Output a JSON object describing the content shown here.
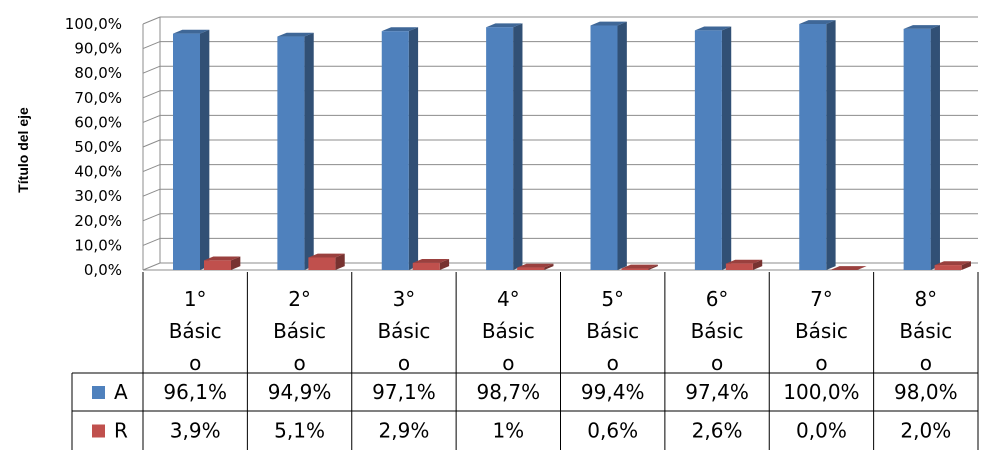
{
  "chart_data": {
    "type": "bar",
    "ylabel": "Título del eje",
    "ylim": [
      0,
      100
    ],
    "yticks": [
      "0,0%",
      "10,0%",
      "20,0%",
      "30,0%",
      "40,0%",
      "50,0%",
      "60,0%",
      "70,0%",
      "80,0%",
      "90,0%",
      "100,0%"
    ],
    "categories": [
      [
        "1°",
        "Básic",
        "o"
      ],
      [
        "2°",
        "Básic",
        "o"
      ],
      [
        "3°",
        "Básic",
        "o"
      ],
      [
        "4°",
        "Básic",
        "o"
      ],
      [
        "5°",
        "Básic",
        "o"
      ],
      [
        "6°",
        "Básic",
        "o"
      ],
      [
        "7°",
        "Básic",
        "o"
      ],
      [
        "8°",
        "Básic",
        "o"
      ]
    ],
    "series": [
      {
        "name": "A",
        "color": "#4f81bd",
        "values": [
          96.1,
          94.9,
          97.1,
          98.7,
          99.4,
          97.4,
          100.0,
          98.0
        ],
        "labels": [
          "96,1%",
          "94,9%",
          "97,1%",
          "98,7%",
          "99,4%",
          "97,4%",
          "100,0%",
          "98,0%"
        ]
      },
      {
        "name": "R",
        "color": "#c0504d",
        "values": [
          3.9,
          5.1,
          2.9,
          1.0,
          0.6,
          2.6,
          0.0,
          2.0
        ],
        "labels": [
          "3,9%",
          "5,1%",
          "2,9%",
          "1%",
          "0,6%",
          "2,6%",
          "0,0%",
          "2,0%"
        ]
      }
    ],
    "grid": true,
    "legend": "data-table"
  }
}
